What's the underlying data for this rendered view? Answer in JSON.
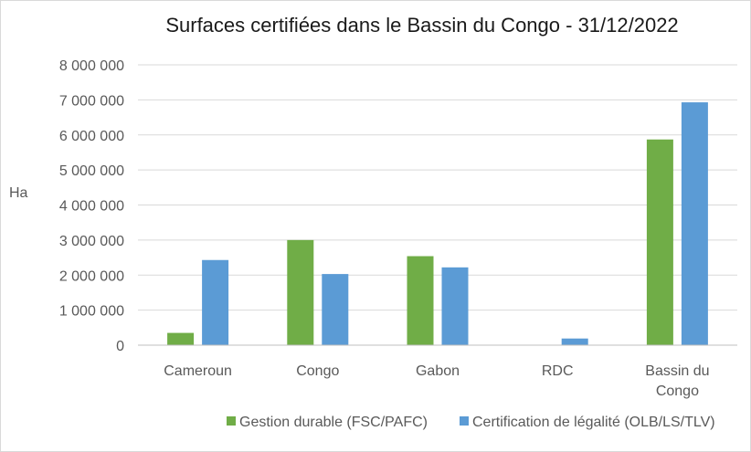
{
  "chart_data": {
    "type": "bar",
    "title": "Surfaces certifiées dans le Bassin du Congo - 31/12/2022",
    "ylabel": "Ha",
    "xlabel": "",
    "categories": [
      [
        "Cameroun"
      ],
      [
        "Congo"
      ],
      [
        "Gabon"
      ],
      [
        "RDC"
      ],
      [
        "Bassin du",
        "Congo"
      ]
    ],
    "series": [
      {
        "name": "Gestion durable (FSC/PAFC)",
        "color": "#70ad47",
        "values": [
          350000,
          3000000,
          2540000,
          0,
          5870000
        ]
      },
      {
        "name": "Certification de légalité (OLB/LS/TLV)",
        "color": "#5b9bd5",
        "values": [
          2430000,
          2030000,
          2220000,
          190000,
          6930000
        ]
      }
    ],
    "ylim": [
      0,
      8000000
    ],
    "yticks": [
      0,
      1000000,
      2000000,
      3000000,
      4000000,
      5000000,
      6000000,
      7000000,
      8000000
    ],
    "ytick_labels": [
      "0",
      "1 000 000",
      "2 000 000",
      "3 000 000",
      "4 000 000",
      "5 000 000",
      "6 000 000",
      "7 000 000",
      "8 000 000"
    ],
    "grid": true,
    "legend_position": "bottom"
  }
}
